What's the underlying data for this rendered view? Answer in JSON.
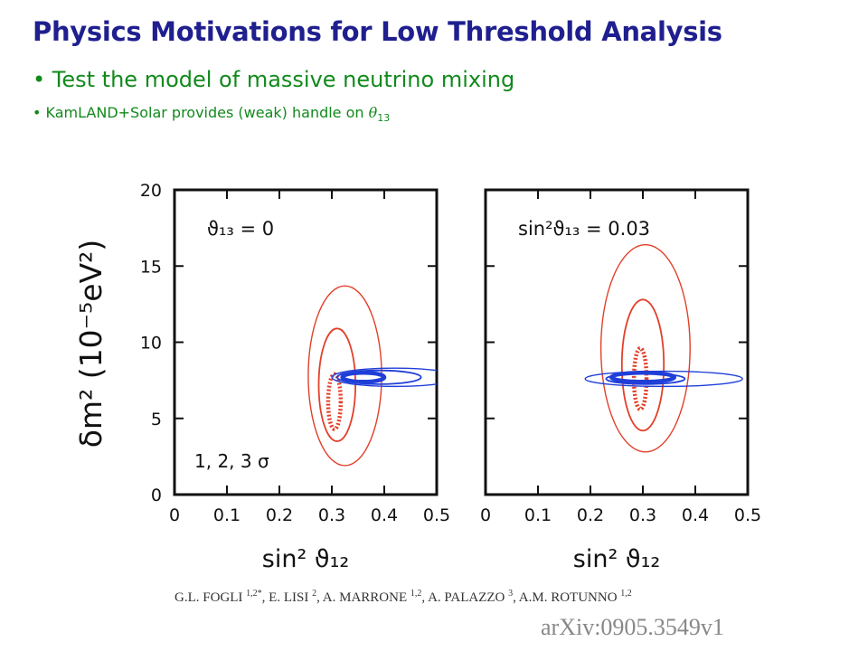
{
  "slide": {
    "title": "Physics Motivations for Low Threshold Analysis",
    "bullet1": "• Test the model of massive neutrino mixing",
    "bullet2_text": "KamLAND+Solar provides (weak) handle on ",
    "bullet2_symbol": "θ",
    "bullet2_sub": "13",
    "bullet_dot": "•"
  },
  "citation": {
    "authors": [
      {
        "name": "G.L. FOGLI ",
        "aff": "1,2*",
        "sep": ", "
      },
      {
        "name": "E. LISI ",
        "aff": "2",
        "sep": ", "
      },
      {
        "name": "A. MARRONE ",
        "aff": "1,2",
        "sep": ", "
      },
      {
        "name": "A. PALAZZO ",
        "aff": "3",
        "sep": ", "
      },
      {
        "name": "A.M. ROTUNNO ",
        "aff": "1,2",
        "sep": ""
      }
    ],
    "arxiv": "arXiv:0905.3549v1"
  },
  "colors": {
    "kamland": "#e2402a",
    "solar": "#1f3fd8",
    "title": "#1f1f8f",
    "bullet": "#118a1c"
  },
  "chart_data": [
    {
      "type": "contour",
      "panel_label": "ϑ₁₃ = 0",
      "footnote": "1, 2, 3 σ",
      "xlabel": "sin² ϑ₁₂",
      "ylabel": "δm² (10⁻⁵eV²)",
      "xlim": [
        0,
        0.5
      ],
      "ylim": [
        0,
        20
      ],
      "xticks": [
        "0",
        "0.1",
        "0.2",
        "0.3",
        "0.4",
        "0.5"
      ],
      "yticks": [
        "0",
        "5",
        "10",
        "15",
        "20"
      ],
      "series": [
        {
          "group": "KamLAND",
          "level": 1,
          "center": [
            0.305,
            6.1
          ],
          "half_width": 0.012,
          "half_height": 1.8
        },
        {
          "group": "KamLAND",
          "level": 2,
          "center": [
            0.31,
            7.2
          ],
          "half_width": 0.035,
          "half_height": 3.7
        },
        {
          "group": "KamLAND",
          "level": 3,
          "center": [
            0.325,
            7.8
          ],
          "half_width": 0.07,
          "half_height": 5.9
        },
        {
          "group": "Solar",
          "level": 1,
          "center": [
            0.36,
            7.7
          ],
          "half_width": 0.04,
          "half_height": 0.3
        },
        {
          "group": "Solar",
          "level": 2,
          "center": [
            0.39,
            7.7
          ],
          "half_width": 0.08,
          "half_height": 0.45
        },
        {
          "group": "Solar",
          "level": 3,
          "center": [
            0.42,
            7.7
          ],
          "half_width": 0.12,
          "half_height": 0.6
        }
      ]
    },
    {
      "type": "contour",
      "panel_label": "sin²ϑ₁₃ = 0.03",
      "xlabel": "sin² ϑ₁₂",
      "xlim": [
        0,
        0.5
      ],
      "ylim": [
        0,
        20
      ],
      "xticks": [
        "0",
        "0.1",
        "0.2",
        "0.3",
        "0.4",
        "0.5"
      ],
      "series": [
        {
          "group": "KamLAND",
          "level": 1,
          "center": [
            0.295,
            7.6
          ],
          "half_width": 0.012,
          "half_height": 2.0
        },
        {
          "group": "KamLAND",
          "level": 2,
          "center": [
            0.3,
            8.5
          ],
          "half_width": 0.04,
          "half_height": 4.3
        },
        {
          "group": "KamLAND",
          "level": 3,
          "center": [
            0.305,
            9.6
          ],
          "half_width": 0.085,
          "half_height": 6.8
        },
        {
          "group": "Solar",
          "level": 1,
          "center": [
            0.3,
            7.7
          ],
          "half_width": 0.06,
          "half_height": 0.3
        },
        {
          "group": "Solar",
          "level": 2,
          "center": [
            0.305,
            7.6
          ],
          "half_width": 0.075,
          "half_height": 0.35
        },
        {
          "group": "Solar",
          "level": 3,
          "center": [
            0.34,
            7.6
          ],
          "half_width": 0.15,
          "half_height": 0.5
        }
      ]
    }
  ]
}
